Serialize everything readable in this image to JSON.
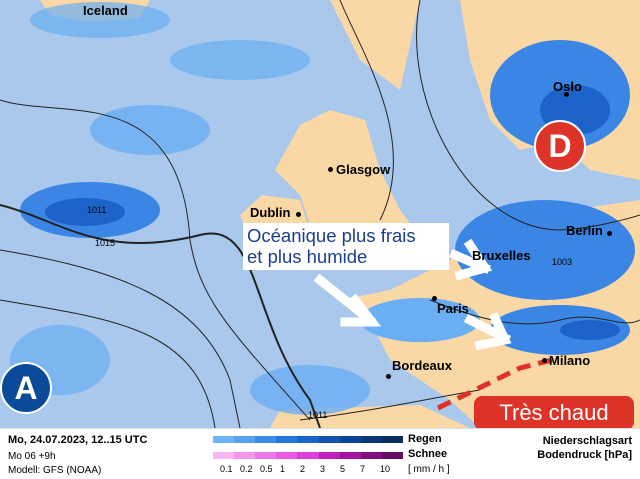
{
  "map": {
    "cities": [
      {
        "name": "Iceland"
      },
      {
        "name": "Oslo"
      },
      {
        "name": "Glasgow"
      },
      {
        "name": "Dublin"
      },
      {
        "name": "Berlin"
      },
      {
        "name": "Bruxelles"
      },
      {
        "name": "Paris"
      },
      {
        "name": "Bordeaux"
      },
      {
        "name": "Milano"
      }
    ],
    "isobar_labels": [
      "1011",
      "1015",
      "1003",
      "1011"
    ],
    "low_label": "D",
    "high_label": "A",
    "callout": [
      "Océanique plus frais",
      "et plus humide"
    ],
    "hot_label": "Très chaud",
    "colors": {
      "sea": "#a9c8ec",
      "land": "#f9d8a6",
      "rain_light": "#6aaef4",
      "rain_mid": "#3b86e4",
      "rain_dark": "#1d62c8",
      "low": "#de3328",
      "high": "#0b4a96"
    }
  },
  "legend": {
    "date": "Mo, 24.07.2023, 12..15 UTC",
    "run": "Mo 06 +9h",
    "model": "Modell: GFS (NOAA)",
    "rain_label": "Regen",
    "snow_label": "Schnee",
    "unit": "[ mm / h ]",
    "ticks": [
      "0.1",
      "0.2",
      "0.5",
      "1",
      "2",
      "3",
      "5",
      "7",
      "10"
    ],
    "rain_colors": [
      "#6fb4f7",
      "#56a2f0",
      "#3a8ce6",
      "#2478d8",
      "#1866c6",
      "#0f55b0",
      "#0a4598",
      "#08377e",
      "#0c2e5e"
    ],
    "snow_colors": [
      "#f8b8f4",
      "#f296ee",
      "#ec78ea",
      "#e85ce6",
      "#dd3fdc",
      "#bf1fbf",
      "#a2149f",
      "#84107f",
      "#650d60"
    ],
    "type_label": "Niederschlagsart",
    "pressure_label": "Bodendruck [hPa]"
  }
}
